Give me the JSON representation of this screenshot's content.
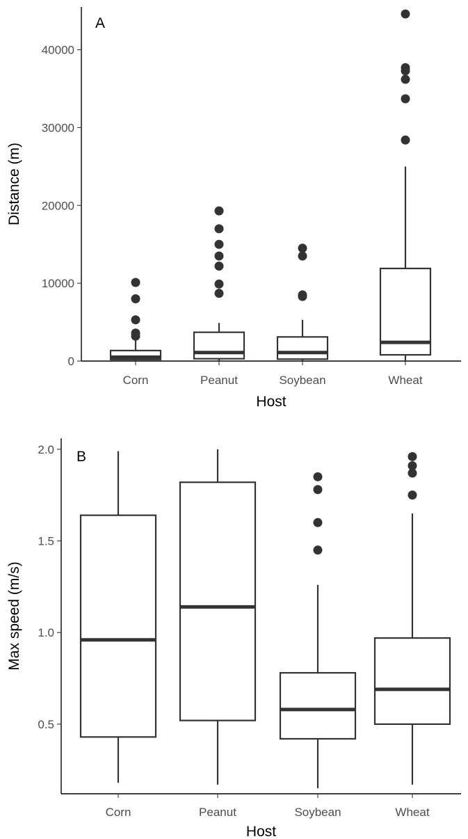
{
  "chart_data": [
    {
      "type": "box",
      "panel_label": "A",
      "xlabel": "Host",
      "ylabel": "Distance (m)",
      "categories": [
        "Corn",
        "Peanut",
        "Soybean",
        "Wheat"
      ],
      "ylim": [
        0,
        45500
      ],
      "yticks": [
        0,
        10000,
        20000,
        30000,
        40000
      ],
      "grid": false,
      "boxes": [
        {
          "category": "Corn",
          "whisker_low": 0,
          "q1": 200,
          "median": 500,
          "q3": 1350,
          "whisker_high": 2700,
          "outliers": [
            3200,
            3600,
            5300,
            8000,
            10100
          ]
        },
        {
          "category": "Peanut",
          "whisker_low": 0,
          "q1": 300,
          "median": 1100,
          "q3": 3700,
          "whisker_high": 4900,
          "outliers": [
            8700,
            9900,
            12200,
            13500,
            15000,
            17000,
            19300
          ]
        },
        {
          "category": "Soybean",
          "whisker_low": 0,
          "q1": 250,
          "median": 1100,
          "q3": 3100,
          "whisker_high": 5300,
          "outliers": [
            8300,
            8500,
            13500,
            14500
          ]
        },
        {
          "category": "Wheat",
          "whisker_low": 0,
          "q1": 800,
          "median": 2400,
          "q3": 11900,
          "whisker_high": 25000,
          "outliers": [
            28400,
            33700,
            36200,
            37300,
            37700,
            44600
          ]
        }
      ]
    },
    {
      "type": "box",
      "panel_label": "B",
      "xlabel": "Host",
      "ylabel": "Max speed (m/s)",
      "categories": [
        "Corn",
        "Peanut",
        "Soybean",
        "Wheat"
      ],
      "ylim": [
        0.12,
        2.06
      ],
      "yticks": [
        0.5,
        1.0,
        1.5,
        2.0
      ],
      "ytick_labels": [
        "0.5",
        "1.0",
        "1.5",
        "2.0"
      ],
      "grid": false,
      "boxes": [
        {
          "category": "Corn",
          "whisker_low": 0.18,
          "q1": 0.43,
          "median": 0.96,
          "q3": 1.64,
          "whisker_high": 1.99,
          "outliers": []
        },
        {
          "category": "Peanut",
          "whisker_low": 0.17,
          "q1": 0.52,
          "median": 1.14,
          "q3": 1.82,
          "whisker_high": 2.0,
          "outliers": []
        },
        {
          "category": "Soybean",
          "whisker_low": 0.15,
          "q1": 0.42,
          "median": 0.58,
          "q3": 0.78,
          "whisker_high": 1.26,
          "outliers": [
            1.45,
            1.6,
            1.78,
            1.85
          ]
        },
        {
          "category": "Wheat",
          "whisker_low": 0.17,
          "q1": 0.5,
          "median": 0.69,
          "q3": 0.97,
          "whisker_high": 1.65,
          "outliers": [
            1.75,
            1.87,
            1.91,
            1.96
          ]
        }
      ]
    }
  ]
}
